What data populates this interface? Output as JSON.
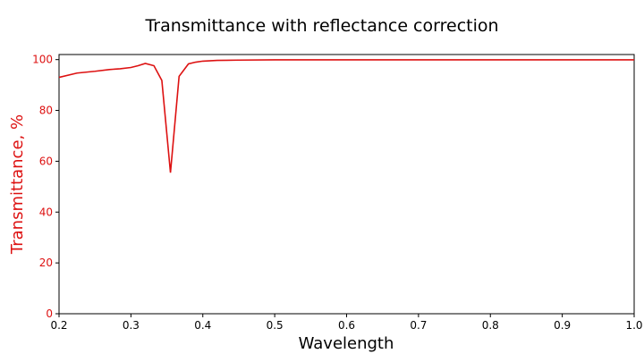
{
  "chart_data": {
    "type": "line",
    "title": "Transmittance with reflectance correction",
    "xlabel": "Wavelength",
    "ylabel": "Transmittance, %",
    "xlim": [
      0.2,
      1.0
    ],
    "ylim": [
      0,
      102
    ],
    "xticks": [
      "0.2",
      "0.3",
      "0.4",
      "0.5",
      "0.6",
      "0.7",
      "0.8",
      "0.9",
      "1.0"
    ],
    "yticks": [
      "0",
      "20",
      "40",
      "60",
      "80",
      "100"
    ],
    "grid": false,
    "colors": {
      "line": "#dd1111",
      "ylabel": "#dd1111",
      "axes": "#000000"
    },
    "series": [
      {
        "x": [
          0.2,
          0.225,
          0.25,
          0.27,
          0.285,
          0.3,
          0.31,
          0.32,
          0.332,
          0.343,
          0.355,
          0.367,
          0.38,
          0.39,
          0.4,
          0.42,
          0.45,
          0.5,
          0.6,
          0.7,
          0.8,
          0.9,
          1.0
        ],
        "y": [
          93.0,
          94.7,
          95.4,
          96.1,
          96.4,
          96.9,
          97.6,
          98.5,
          97.6,
          91.8,
          55.5,
          93.4,
          98.3,
          99.0,
          99.4,
          99.7,
          99.8,
          99.9,
          99.9,
          99.9,
          99.9,
          99.9,
          99.9
        ]
      }
    ]
  }
}
